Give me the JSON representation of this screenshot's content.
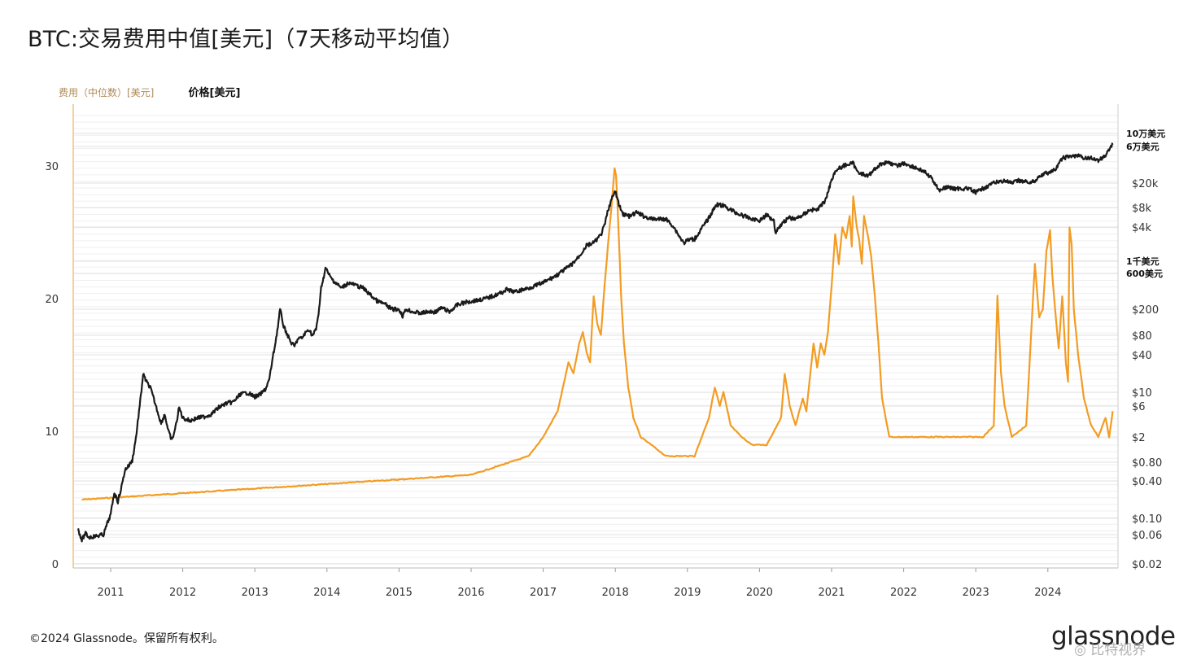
{
  "header": {
    "title": "BTC:交易费用中值[美元]（7天移动平均值）"
  },
  "legend": {
    "fee_label": "费用（中位数）[美元]",
    "price_label": "价格[美元]"
  },
  "footer": {
    "copyright": "©2024 Glassnode。保留所有权利。",
    "logo": "glassnode",
    "watermark": "◎ 比特视界"
  },
  "colors": {
    "fee": "#f39c23",
    "price": "#1a1a1a"
  },
  "chart_data": {
    "type": "line",
    "title": "BTC:交易费用中值[美元]（7天移动平均值）",
    "left_axis": {
      "ticks": [
        0,
        10,
        20,
        30
      ],
      "ylim": [
        0,
        33
      ]
    },
    "right_axis": {
      "scale": "log",
      "tick_labels": [
        "10万美元",
        "6万美元",
        "$20k",
        "$8k",
        "$4k",
        "1千美元",
        "600美元",
        "$200",
        "$80",
        "$40",
        "$10",
        "$6",
        "$2",
        "$0.80",
        "$0.40",
        "$0.10",
        "$0.06",
        "$0.02"
      ]
    },
    "x_ticks": [
      "2011",
      "2012",
      "2013",
      "2014",
      "2015",
      "2016",
      "2017",
      "2018",
      "2019",
      "2020",
      "2021",
      "2022",
      "2023",
      "2024"
    ],
    "grid": true,
    "series": [
      {
        "name": "费用（中位数）[美元]",
        "axis": "right",
        "x": [
          2010.6,
          2016.0,
          2016.8,
          2017.0,
          2017.2,
          2017.35,
          2017.42,
          2017.5,
          2017.55,
          2017.6,
          2017.65,
          2017.7,
          2017.75,
          2017.8,
          2017.85,
          2017.9,
          2017.95,
          2017.99,
          2018.01,
          2018.03,
          2018.05,
          2018.08,
          2018.12,
          2018.18,
          2018.25,
          2018.35,
          2018.5,
          2018.7,
          2018.9,
          2019.1,
          2019.3,
          2019.38,
          2019.45,
          2019.5,
          2019.6,
          2019.75,
          2019.9,
          2020.1,
          2020.3,
          2020.35,
          2020.42,
          2020.5,
          2020.6,
          2020.65,
          2020.75,
          2020.8,
          2020.85,
          2020.9,
          2020.95,
          2021.0,
          2021.05,
          2021.1,
          2021.15,
          2021.2,
          2021.25,
          2021.28,
          2021.3,
          2021.35,
          2021.38,
          2021.42,
          2021.45,
          2021.5,
          2021.55,
          2021.6,
          2021.65,
          2021.7,
          2021.8,
          2022.0,
          2022.3,
          2022.6,
          2022.9,
          2023.1,
          2023.25,
          2023.3,
          2023.35,
          2023.4,
          2023.5,
          2023.7,
          2023.82,
          2023.88,
          2023.93,
          2023.98,
          2024.03,
          2024.06,
          2024.1,
          2024.15,
          2024.2,
          2024.25,
          2024.28,
          2024.3,
          2024.33,
          2024.36,
          2024.42,
          2024.5,
          2024.6,
          2024.7,
          2024.8,
          2024.85,
          2024.9
        ],
        "values": [
          0.2,
          0.5,
          1,
          2,
          5,
          30,
          20,
          60,
          90,
          45,
          30,
          300,
          120,
          80,
          400,
          2000,
          9000,
          31000,
          25000,
          9000,
          2500,
          300,
          60,
          12,
          4,
          2,
          1.5,
          1,
          1,
          1,
          4,
          12,
          6,
          10,
          3,
          2,
          1.5,
          1.5,
          4,
          20,
          6,
          3,
          8,
          5,
          60,
          25,
          60,
          40,
          90,
          400,
          3000,
          900,
          4000,
          2500,
          6000,
          1800,
          12000,
          4000,
          2500,
          900,
          6000,
          3000,
          1200,
          300,
          60,
          8,
          2,
          2,
          2,
          2,
          2,
          2,
          3,
          300,
          20,
          6,
          2,
          3,
          900,
          150,
          200,
          1500,
          3500,
          600,
          200,
          50,
          300,
          30,
          15,
          4000,
          2000,
          200,
          40,
          8,
          3,
          2,
          4,
          2,
          5
        ]
      },
      {
        "name": "价格[美元]",
        "axis": "left",
        "x": [
          2010.55,
          2010.6,
          2010.65,
          2010.7,
          2010.8,
          2010.9,
          2010.95,
          2011.0,
          2011.05,
          2011.1,
          2011.15,
          2011.2,
          2011.25,
          2011.3,
          2011.35,
          2011.42,
          2011.45,
          2011.5,
          2011.55,
          2011.6,
          2011.7,
          2011.75,
          2011.8,
          2011.85,
          2011.9,
          2011.95,
          2012.0,
          2012.05,
          2012.1,
          2012.2,
          2012.3,
          2012.4,
          2012.5,
          2012.6,
          2012.7,
          2012.8,
          2012.9,
          2013.0,
          2013.05,
          2013.1,
          2013.15,
          2013.2,
          2013.25,
          2013.28,
          2013.32,
          2013.35,
          2013.4,
          2013.45,
          2013.5,
          2013.55,
          2013.6,
          2013.65,
          2013.7,
          2013.75,
          2013.8,
          2013.85,
          2013.9,
          2013.92,
          2013.95,
          2013.98,
          2014.05,
          2014.1,
          2014.2,
          2014.3,
          2014.4,
          2014.5,
          2014.6,
          2014.7,
          2014.8,
          2014.9,
          2015.0,
          2015.05,
          2015.1,
          2015.2,
          2015.3,
          2015.4,
          2015.5,
          2015.6,
          2015.7,
          2015.8,
          2015.9,
          2016.0,
          2016.2,
          2016.4,
          2016.5,
          2016.6,
          2016.8,
          2017.0,
          2017.2,
          2017.4,
          2017.5,
          2017.6,
          2017.7,
          2017.75,
          2017.8,
          2017.85,
          2017.9,
          2017.95,
          2018.0,
          2018.05,
          2018.1,
          2018.2,
          2018.3,
          2018.4,
          2018.5,
          2018.6,
          2018.7,
          2018.8,
          2018.9,
          2018.95,
          2019.0,
          2019.1,
          2019.2,
          2019.3,
          2019.4,
          2019.5,
          2019.6,
          2019.7,
          2019.8,
          2019.9,
          2020.0,
          2020.1,
          2020.2,
          2020.22,
          2020.3,
          2020.4,
          2020.5,
          2020.6,
          2020.7,
          2020.8,
          2020.85,
          2020.9,
          2020.95,
          2021.0,
          2021.05,
          2021.1,
          2021.2,
          2021.3,
          2021.35,
          2021.4,
          2021.5,
          2021.6,
          2021.7,
          2021.8,
          2021.85,
          2021.9,
          2022.0,
          2022.1,
          2022.2,
          2022.3,
          2022.4,
          2022.45,
          2022.5,
          2022.6,
          2022.7,
          2022.8,
          2022.9,
          2023.0,
          2023.1,
          2023.2,
          2023.3,
          2023.4,
          2023.5,
          2023.6,
          2023.7,
          2023.8,
          2023.9,
          2024.0,
          2024.1,
          2024.15,
          2024.2,
          2024.3,
          2024.4,
          2024.5,
          2024.6,
          2024.7,
          2024.8,
          2024.85,
          2024.9
        ],
        "values": [
          2.6,
          1.8,
          2.3,
          2.0,
          2.1,
          2.2,
          3.0,
          3.7,
          5.4,
          4.7,
          5.8,
          7.1,
          7.4,
          7.8,
          9.5,
          12.7,
          14.3,
          13.7,
          13.3,
          12.4,
          10.6,
          11.3,
          10.0,
          9.3,
          10.3,
          11.8,
          11.0,
          10.9,
          10.8,
          11.0,
          11.1,
          11.3,
          11.8,
          12.1,
          12.2,
          12.8,
          12.9,
          12.6,
          12.7,
          12.9,
          13.2,
          13.9,
          15.6,
          16.5,
          17.9,
          19.2,
          17.9,
          17.3,
          16.7,
          16.4,
          17.0,
          17.0,
          17.4,
          17.7,
          17.2,
          17.7,
          19.5,
          20.9,
          21.5,
          22.3,
          21.6,
          21.3,
          20.8,
          21.2,
          21.0,
          20.8,
          20.3,
          19.8,
          19.6,
          19.2,
          19.2,
          18.7,
          19.2,
          19.0,
          18.9,
          19.0,
          19.0,
          19.3,
          19.0,
          19.5,
          19.7,
          19.8,
          20.0,
          20.4,
          20.7,
          20.5,
          20.8,
          21.2,
          21.8,
          22.6,
          23.2,
          24.0,
          24.2,
          24.5,
          24.8,
          25.5,
          26.7,
          27.5,
          28.1,
          27.1,
          26.4,
          26.2,
          26.5,
          26.2,
          26.0,
          26.0,
          26.0,
          25.5,
          24.6,
          24.2,
          24.4,
          24.5,
          25.3,
          26.1,
          27.1,
          27.0,
          26.7,
          26.4,
          26.2,
          26.0,
          25.9,
          26.3,
          25.9,
          25.0,
          25.6,
          26.1,
          26.0,
          26.3,
          26.7,
          26.7,
          27.0,
          27.3,
          28.0,
          29.0,
          29.6,
          29.8,
          30.1,
          30.2,
          29.6,
          29.5,
          29.2,
          29.8,
          30.2,
          30.3,
          30.1,
          30.0,
          30.2,
          30.0,
          29.8,
          29.5,
          29.0,
          28.5,
          28.2,
          28.4,
          28.3,
          28.3,
          28.3,
          28.0,
          28.3,
          28.6,
          28.8,
          28.9,
          28.7,
          28.9,
          28.8,
          28.8,
          29.3,
          29.5,
          29.7,
          30.1,
          30.6,
          30.7,
          30.8,
          30.6,
          30.6,
          30.4,
          30.8,
          31.3,
          31.6
        ]
      }
    ]
  }
}
